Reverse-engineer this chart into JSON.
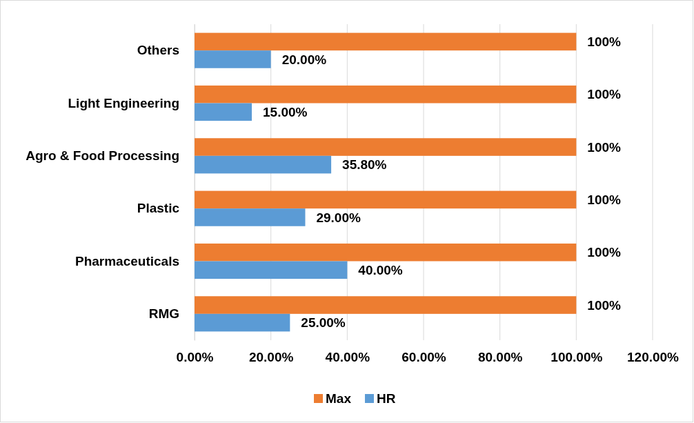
{
  "chart_data": {
    "type": "bar",
    "orientation": "horizontal",
    "categories": [
      "Others",
      "Light Engineering",
      "Agro & Food Processing",
      "Plastic",
      "Pharmaceuticals",
      "RMG"
    ],
    "series": [
      {
        "name": "Max",
        "color": "#ed7d31",
        "values": [
          100,
          100,
          100,
          100,
          100,
          100
        ],
        "value_labels": [
          "100%",
          "100%",
          "100%",
          "100%",
          "100%",
          "100%"
        ]
      },
      {
        "name": "HR",
        "color": "#5b9bd5",
        "values": [
          20,
          15,
          35.8,
          29,
          40,
          25
        ],
        "value_labels": [
          "20.00%",
          "15.00%",
          "35.80%",
          "29.00%",
          "40.00%",
          "25.00%"
        ]
      }
    ],
    "xlim": [
      0,
      120
    ],
    "xticks": [
      {
        "value": 0,
        "label": "0.00%"
      },
      {
        "value": 20,
        "label": "20.00%"
      },
      {
        "value": 40,
        "label": "40.00%"
      },
      {
        "value": 60,
        "label": "60.00%"
      },
      {
        "value": 80,
        "label": "80.00%"
      },
      {
        "value": 100,
        "label": "100.00%"
      },
      {
        "value": 120,
        "label": "120.00%"
      }
    ],
    "grid": "x",
    "legend": "bottom"
  }
}
